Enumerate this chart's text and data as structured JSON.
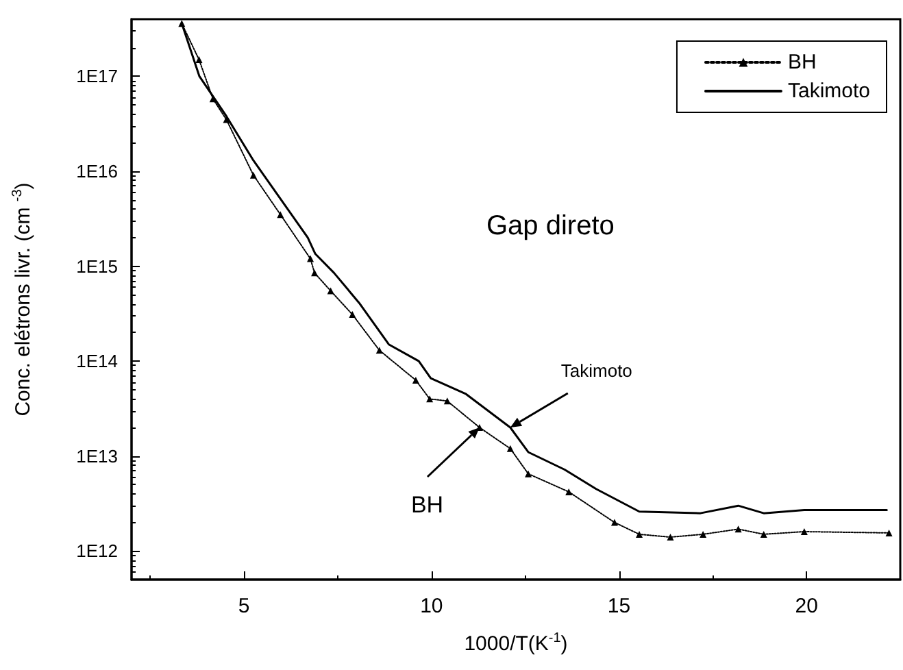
{
  "chart_data": {
    "type": "line",
    "xlabel": "1000/T(K$^{-1}$)",
    "ylabel": "Conc. elétrons livr. (cm $^{-3}$)",
    "log": "y",
    "xlim": [
      2,
      22.5
    ],
    "xticks": [
      5,
      10,
      15,
      20
    ],
    "ylim": [
      500000000000.0,
      4e+17
    ],
    "yticks": [
      {
        "value": 1000000000000.0,
        "label": "1E12"
      },
      {
        "value": 10000000000000.0,
        "label": "1E13"
      },
      {
        "value": 100000000000000.0,
        "label": "1E14"
      },
      {
        "value": 1000000000000000.0,
        "label": "1E15"
      },
      {
        "value": 1e+16,
        "label": "1E16"
      },
      {
        "value": 1e+17,
        "label": "1E17"
      }
    ],
    "grid": false,
    "legend": "top right",
    "annotations": [
      "Gap direto",
      {
        "text": "Takimoto",
        "x": 12.1,
        "y": 20000000000000.0
      },
      {
        "text": "BH",
        "x": 11.28,
        "y": 20000000000000.0
      }
    ],
    "series": [
      {
        "name": "BH",
        "color": "#000000",
        "marker": "triangle",
        "line_style": "dotted",
        "x": [
          3.34,
          3.8,
          4.17,
          4.53,
          5.25,
          5.97,
          6.77,
          6.88,
          7.31,
          7.89,
          8.61,
          9.58,
          9.95,
          10.42,
          11.28,
          12.1,
          12.58,
          13.66,
          14.88,
          15.54,
          16.37,
          17.24,
          18.18,
          18.86,
          19.94,
          22.2
        ],
        "values": [
          3.6e+17,
          1.5e+17,
          5.8e+16,
          3.5e+16,
          9100000000000000.0,
          3500000000000000.0,
          1200000000000000.0,
          850000000000000.0,
          550000000000000.0,
          310000000000000.0,
          130000000000000.0,
          63000000000000.0,
          40000000000000.0,
          38000000000000.0,
          20000000000000.0,
          12000000000000.0,
          6500000000000.0,
          4200000000000.0,
          2000000000000.0,
          1500000000000.0,
          1400000000000.0,
          1500000000000.0,
          1700000000000.0,
          1500000000000.0,
          1600000000000.0,
          1550000000000.0
        ]
      },
      {
        "name": "Takimoto",
        "color": "#000000",
        "marker": "none",
        "line_style": "solid",
        "x": [
          3.34,
          3.81,
          4.53,
          5.25,
          6.7,
          6.9,
          7.4,
          8.07,
          8.86,
          9.66,
          9.98,
          10.92,
          12.1,
          12.58,
          13.55,
          14.39,
          15.54,
          17.17,
          18.18,
          18.86,
          19.94,
          22.14
        ],
        "values": [
          3.6e+17,
          1e+17,
          3.8e+16,
          1.3e+16,
          2000000000000000.0,
          1350000000000000.0,
          850000000000000.0,
          410000000000000.0,
          150000000000000.0,
          100000000000000.0,
          66000000000000.0,
          45000000000000.0,
          20000000000000.0,
          11000000000000.0,
          7200000000000.0,
          4500000000000.0,
          2600000000000.0,
          2500000000000.0,
          3000000000000.0,
          2500000000000.0,
          2700000000000.0,
          2700000000000.0
        ]
      }
    ]
  }
}
